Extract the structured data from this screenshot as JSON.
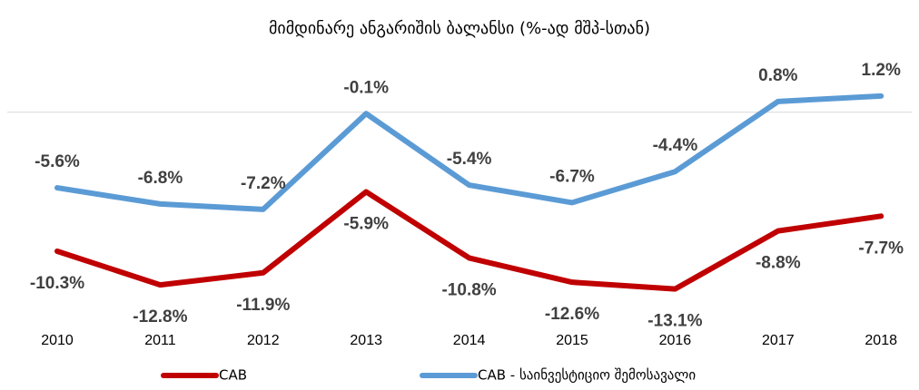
{
  "chart_data": {
    "type": "line",
    "title": "მიმდინარე ანგარიშის ბალანსი (%-ად მშპ-სთან)",
    "categories": [
      "2010",
      "2011",
      "2012",
      "2013",
      "2014",
      "2015",
      "2016",
      "2017",
      "2018"
    ],
    "series": [
      {
        "name": "CAB",
        "color": "#c00000",
        "values": [
          -10.3,
          -12.8,
          -11.9,
          -5.9,
          -10.8,
          -12.6,
          -13.1,
          -8.8,
          -7.7
        ],
        "value_labels": [
          "-10.3%",
          "-12.8%",
          "-11.9%",
          "-5.9%",
          "-10.8%",
          "-12.6%",
          "-13.1%",
          "-8.8%",
          "-7.7%"
        ]
      },
      {
        "name": "CAB - საინვესტიციო შემოსავალი",
        "color": "#5b9bd5",
        "values": [
          -5.6,
          -6.8,
          -7.2,
          -0.1,
          -5.4,
          -6.7,
          -4.4,
          0.8,
          1.2
        ],
        "value_labels": [
          "-5.6%",
          "-6.8%",
          "-7.2%",
          "-0.1%",
          "-5.4%",
          "-6.7%",
          "-4.4%",
          "0.8%",
          "1.2%"
        ]
      }
    ],
    "ylim": [
      -14,
      2
    ],
    "legend": "bottom"
  }
}
